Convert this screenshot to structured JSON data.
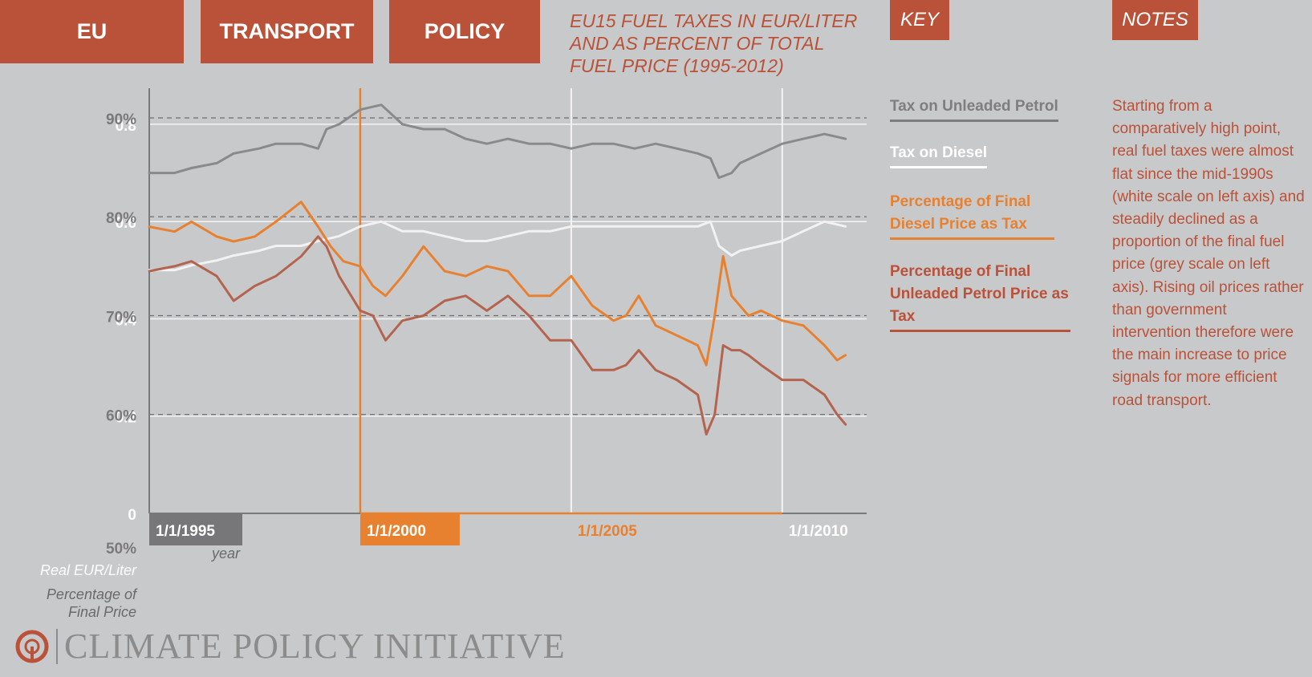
{
  "header": {
    "tabs": [
      "EU",
      "TRANSPORT",
      "POLICY"
    ],
    "title": "EU15 FUEL TAXES IN EUR/LITER AND AS PERCENT OF TOTAL FUEL PRICE (1995-2012)",
    "key_label": "KEY",
    "notes_label": "NOTES"
  },
  "key": {
    "petrol_tax": "Tax on Unleaded Petrol",
    "diesel_tax": "Tax on Diesel",
    "diesel_pct": "Percentage of Final Diesel Price as Tax",
    "petrol_pct": "Percentage of Final Unleaded Petrol Price as Tax"
  },
  "notes": "Starting from a comparatively high point, real fuel taxes were almost flat since the mid-1990s (white scale on left axis) and steadily declined as a proportion of the final fuel price (grey scale on left axis). Rising oil prices rather than government intervention therefore were the main increase to price signals for more efficient road transport.",
  "axis": {
    "left_title_1": "Real EUR/Liter",
    "left_title_2": "Percentage of Final Price",
    "x_title": "year"
  },
  "logo": {
    "text": "CLIMATE POLICY INITIATIVE"
  },
  "colors": {
    "background": "#c8c9cb",
    "accent": "#b95238",
    "petrol_tax": "#8a8a8c",
    "diesel_tax": "#f2f2f2",
    "diesel_pct": "#e8812f",
    "petrol_pct": "#b4644e"
  },
  "chart_data": {
    "type": "line",
    "x_type": "date",
    "xlim": [
      "1995-01-01",
      "2011-12-31"
    ],
    "x_ticks": [
      "1/1/1995",
      "1/1/2000",
      "1/1/2005",
      "1/1/2010"
    ],
    "x_tick_dates": [
      "1995-01-01",
      "2000-01-01",
      "2005-01-01",
      "2010-01-01"
    ],
    "y_left_eur": {
      "ylim": [
        0,
        0.8741
      ],
      "ticks": [
        "0",
        "0.2",
        "0.4",
        "0.6",
        "0.8"
      ],
      "tick_values": [
        0,
        0.2,
        0.4,
        0.6,
        0.8
      ]
    },
    "y_left_pct": {
      "ylim": [
        50,
        93
      ],
      "ticks": [
        "50%",
        "60%",
        "70%",
        "80%",
        "90%"
      ],
      "tick_values": [
        50,
        60,
        70,
        80,
        90
      ]
    },
    "grid": true,
    "series": [
      {
        "name": "Tax on Unleaded Petrol",
        "axis": "eur",
        "color": "#8a8a8c",
        "x": [
          1995.0,
          1995.6,
          1996.0,
          1996.6,
          1997.0,
          1997.6,
          1998.0,
          1998.6,
          1999.0,
          1999.2,
          1999.5,
          2000.0,
          2000.5,
          2001.0,
          2001.5,
          2002.0,
          2002.5,
          2003.0,
          2003.5,
          2004.0,
          2004.5,
          2005.0,
          2005.5,
          2006.0,
          2006.5,
          2007.0,
          2007.5,
          2008.0,
          2008.3,
          2008.5,
          2008.8,
          2009.0,
          2009.5,
          2010.0,
          2010.5,
          2011.0,
          2011.5
        ],
        "y": [
          0.7,
          0.7,
          0.71,
          0.72,
          0.74,
          0.75,
          0.76,
          0.76,
          0.75,
          0.79,
          0.8,
          0.83,
          0.84,
          0.8,
          0.79,
          0.79,
          0.77,
          0.76,
          0.77,
          0.76,
          0.76,
          0.75,
          0.76,
          0.76,
          0.75,
          0.76,
          0.75,
          0.74,
          0.73,
          0.69,
          0.7,
          0.72,
          0.74,
          0.76,
          0.77,
          0.78,
          0.77
        ]
      },
      {
        "name": "Tax on Diesel",
        "axis": "eur",
        "color": "#f2f2f2",
        "x": [
          1995.0,
          1995.6,
          1996.0,
          1996.6,
          1997.0,
          1997.6,
          1998.0,
          1998.6,
          1999.0,
          1999.5,
          2000.0,
          2000.5,
          2001.0,
          2001.5,
          2002.0,
          2002.5,
          2003.0,
          2003.5,
          2004.0,
          2004.5,
          2005.0,
          2005.5,
          2006.0,
          2006.5,
          2007.0,
          2007.5,
          2008.0,
          2008.3,
          2008.5,
          2008.8,
          2009.0,
          2009.5,
          2010.0,
          2010.5,
          2011.0,
          2011.5
        ],
        "y": [
          0.5,
          0.5,
          0.51,
          0.52,
          0.53,
          0.54,
          0.55,
          0.55,
          0.56,
          0.57,
          0.59,
          0.6,
          0.58,
          0.58,
          0.57,
          0.56,
          0.56,
          0.57,
          0.58,
          0.58,
          0.59,
          0.59,
          0.59,
          0.59,
          0.59,
          0.59,
          0.59,
          0.6,
          0.55,
          0.53,
          0.54,
          0.55,
          0.56,
          0.58,
          0.6,
          0.59
        ]
      },
      {
        "name": "Percentage of Final Diesel Price as Tax",
        "axis": "pct",
        "color": "#e8812f",
        "x": [
          1995.0,
          1995.6,
          1996.0,
          1996.6,
          1997.0,
          1997.5,
          1998.0,
          1998.6,
          1999.0,
          1999.3,
          1999.6,
          2000.0,
          2000.3,
          2000.6,
          2001.0,
          2001.5,
          2002.0,
          2002.5,
          2003.0,
          2003.5,
          2004.0,
          2004.5,
          2005.0,
          2005.5,
          2006.0,
          2006.3,
          2006.6,
          2007.0,
          2007.5,
          2008.0,
          2008.2,
          2008.4,
          2008.6,
          2008.8,
          2009.0,
          2009.2,
          2009.5,
          2010.0,
          2010.5,
          2011.0,
          2011.3,
          2011.5
        ],
        "y": [
          79.0,
          78.5,
          79.5,
          78.0,
          77.5,
          78.0,
          79.5,
          81.5,
          79.0,
          77.0,
          75.5,
          75.0,
          73.0,
          72.0,
          74.0,
          77.0,
          74.5,
          74.0,
          75.0,
          74.5,
          72.0,
          72.0,
          74.0,
          71.0,
          69.5,
          70.0,
          72.0,
          69.0,
          68.0,
          67.0,
          65.0,
          70.0,
          76.0,
          72.0,
          71.0,
          70.0,
          70.5,
          69.5,
          69.0,
          67.0,
          65.5,
          66.0
        ]
      },
      {
        "name": "Percentage of Final Unleaded Petrol Price as Tax",
        "axis": "pct",
        "color": "#b4644e",
        "x": [
          1995.0,
          1995.6,
          1996.0,
          1996.6,
          1997.0,
          1997.5,
          1998.0,
          1998.6,
          1999.0,
          1999.2,
          1999.5,
          2000.0,
          2000.3,
          2000.6,
          2001.0,
          2001.5,
          2002.0,
          2002.5,
          2003.0,
          2003.5,
          2004.0,
          2004.5,
          2005.0,
          2005.5,
          2006.0,
          2006.3,
          2006.6,
          2007.0,
          2007.5,
          2008.0,
          2008.2,
          2008.4,
          2008.6,
          2008.8,
          2009.0,
          2009.2,
          2009.5,
          2010.0,
          2010.5,
          2011.0,
          2011.3,
          2011.5
        ],
        "y": [
          74.5,
          75.0,
          75.5,
          74.0,
          71.5,
          73.0,
          74.0,
          76.0,
          78.0,
          77.0,
          74.0,
          70.5,
          70.0,
          67.5,
          69.5,
          70.0,
          71.5,
          72.0,
          70.5,
          72.0,
          70.0,
          67.5,
          67.5,
          64.5,
          64.5,
          65.0,
          66.5,
          64.5,
          63.5,
          62.0,
          58.0,
          60.0,
          67.0,
          66.5,
          66.5,
          66.0,
          65.0,
          63.5,
          63.5,
          62.0,
          60.0,
          59.0
        ]
      }
    ]
  }
}
